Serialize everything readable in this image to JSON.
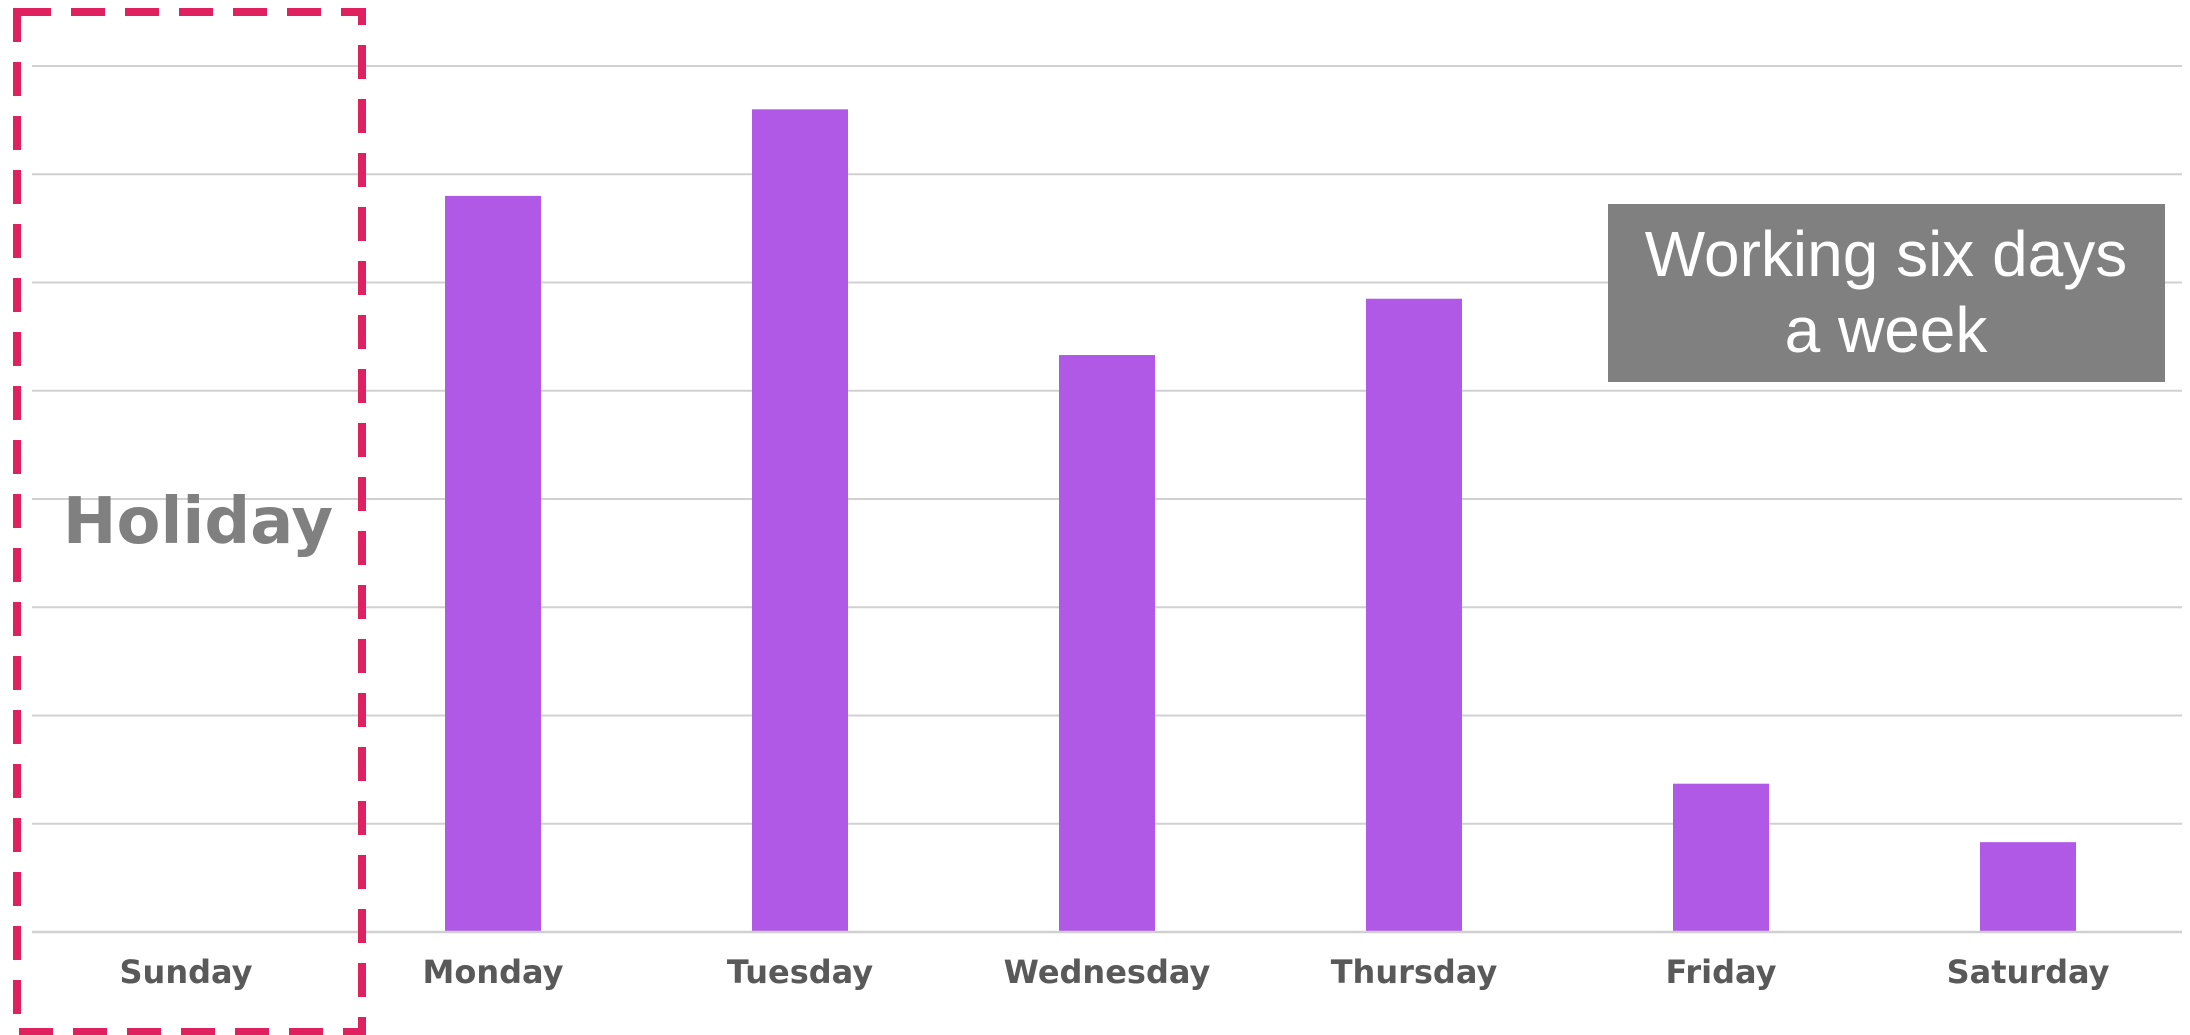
{
  "chart_data": {
    "type": "bar",
    "categories": [
      "Sunday",
      "Monday",
      "Tuesday",
      "Wednesday",
      "Thursday",
      "Friday",
      "Saturday"
    ],
    "values": [
      0,
      6.8,
      7.6,
      5.33,
      5.85,
      1.37,
      0.83
    ],
    "ylim": [
      0,
      8
    ],
    "grid": true,
    "bar_color": "#b059e6",
    "annotations": {
      "holiday_label": "Holiday",
      "holiday_category": "Sunday",
      "holiday_frame_color": "#e0215f",
      "note_line1": "Working six days",
      "note_line2": "a week",
      "note_box_color": "#808080"
    }
  }
}
